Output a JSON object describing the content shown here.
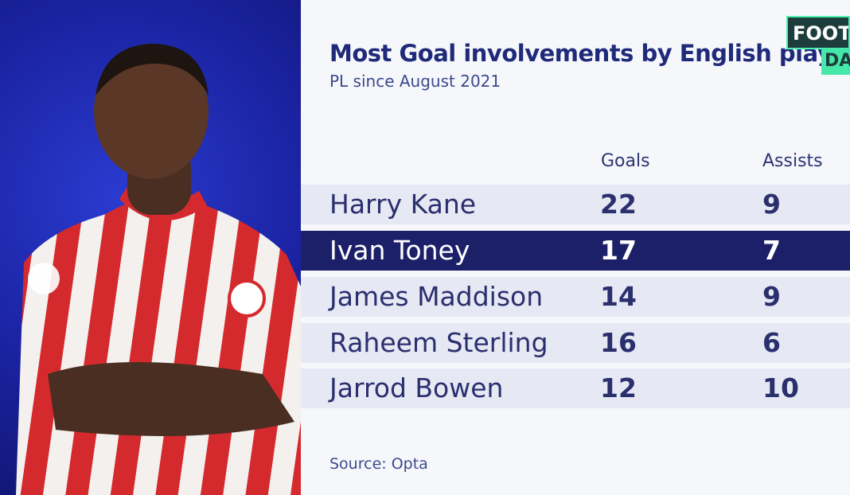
{
  "header": {
    "title": "Most Goal involvements by English play",
    "subtitle": "PL since August 2021",
    "logo": [
      "FOOT",
      "DA"
    ]
  },
  "table": {
    "columns": [
      "Goals",
      "Assists"
    ],
    "rows": [
      [
        "Harry Kane",
        22,
        9
      ],
      [
        "Ivan Toney",
        17,
        7
      ],
      [
        "James Maddison",
        14,
        9
      ],
      [
        "Raheem Sterling",
        16,
        6
      ],
      [
        "Jarrod Bowen",
        12,
        10
      ]
    ]
  },
  "footer": {
    "source": "Source: Opta"
  }
}
